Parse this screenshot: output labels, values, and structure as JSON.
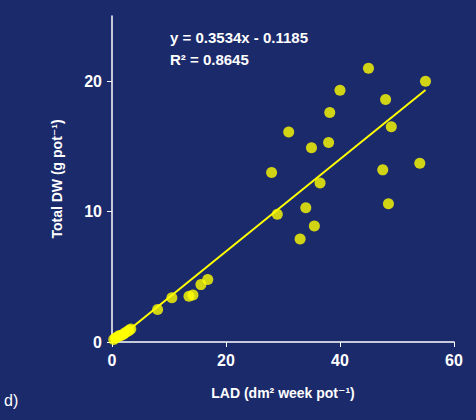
{
  "chart_data": {
    "type": "scatter",
    "x_label": "LAD (dm² week pot⁻¹)",
    "y_label": "Total DW (g pot⁻¹)",
    "x": [
      0.3,
      0.6,
      1.0,
      1.3,
      1.6,
      2.0,
      2.3,
      2.7,
      3.0,
      3.3,
      8.0,
      10.5,
      13.5,
      14.2,
      15.6,
      16.8,
      28.0,
      29.0,
      31.0,
      33.0,
      34.0,
      35.0,
      35.5,
      36.5,
      38.0,
      38.2,
      40.0,
      45.0,
      47.5,
      48.0,
      48.5,
      49.0,
      54.0,
      55.0
    ],
    "values": [
      0.2,
      0.3,
      0.4,
      0.5,
      0.5,
      0.6,
      0.7,
      0.8,
      0.9,
      1.0,
      2.5,
      3.4,
      3.5,
      3.6,
      4.4,
      4.8,
      13.0,
      9.8,
      16.1,
      7.9,
      10.3,
      14.9,
      8.9,
      12.2,
      15.3,
      17.6,
      19.3,
      21.0,
      13.2,
      18.6,
      10.6,
      16.5,
      13.7,
      20.0
    ],
    "color": "#ffff00",
    "marker": "circle",
    "xlim": [
      0,
      60
    ],
    "xticks": [
      0,
      20,
      40,
      60
    ],
    "ylim": [
      0,
      25
    ],
    "yticks": [
      0,
      10,
      20
    ],
    "grid": false,
    "trendline": {
      "slope": 0.3534,
      "intercept": -0.1185,
      "color": "#ffff00"
    },
    "annotations": [
      "y = 0.3534x - 0.1185",
      "R² = 0.8645"
    ],
    "panel": "d)"
  }
}
